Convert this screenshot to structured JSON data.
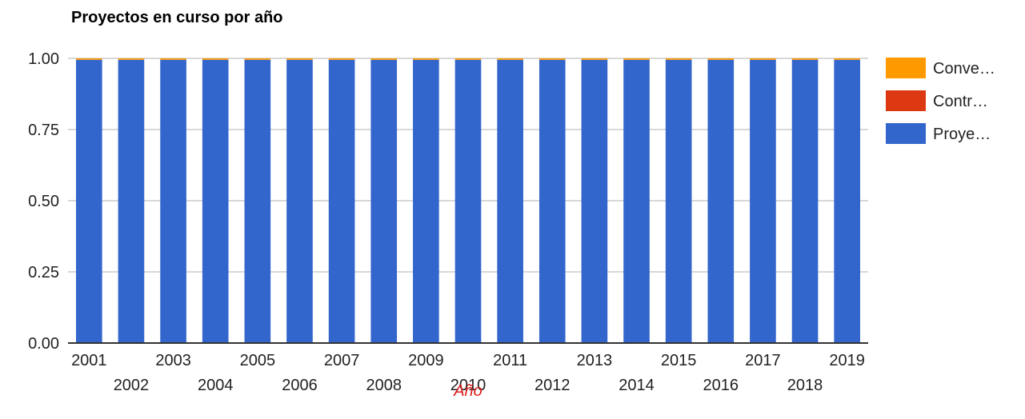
{
  "chart_data": {
    "type": "bar",
    "stacked": true,
    "title": "Proyectos en curso por año",
    "xlabel": "Año",
    "ylabel": "",
    "ylim": [
      0,
      1
    ],
    "yticks": [
      "0.00",
      "0.25",
      "0.50",
      "0.75",
      "1.00"
    ],
    "grid": true,
    "legend_position": "right",
    "categories": [
      "2001",
      "2002",
      "2003",
      "2004",
      "2005",
      "2006",
      "2007",
      "2008",
      "2009",
      "2010",
      "2011",
      "2012",
      "2013",
      "2014",
      "2015",
      "2016",
      "2017",
      "2018",
      "2019"
    ],
    "series": [
      {
        "name": "Proye…",
        "color": "#3366cc",
        "values": [
          0.995,
          0.995,
          0.995,
          0.995,
          0.995,
          0.995,
          0.995,
          0.995,
          0.995,
          0.995,
          0.995,
          0.995,
          0.995,
          0.995,
          0.995,
          0.995,
          0.995,
          0.995,
          0.995
        ]
      },
      {
        "name": "Contr…",
        "color": "#dc3912",
        "values": [
          0,
          0,
          0,
          0,
          0,
          0,
          0,
          0,
          0,
          0,
          0,
          0,
          0,
          0,
          0,
          0,
          0,
          0,
          0
        ]
      },
      {
        "name": "Conve…",
        "color": "#ff9900",
        "values": [
          0.005,
          0.005,
          0.005,
          0.005,
          0.005,
          0.005,
          0.005,
          0.005,
          0.005,
          0.005,
          0.005,
          0.005,
          0.005,
          0.005,
          0.005,
          0.005,
          0.005,
          0.005,
          0.005
        ]
      }
    ],
    "legend_order": [
      "Conve…",
      "Contr…",
      "Proye…"
    ],
    "colors": {
      "grid": "#cccccc",
      "axis": "#333333",
      "tick_text": "#222222",
      "xlabel": "#dc1c1c"
    }
  }
}
